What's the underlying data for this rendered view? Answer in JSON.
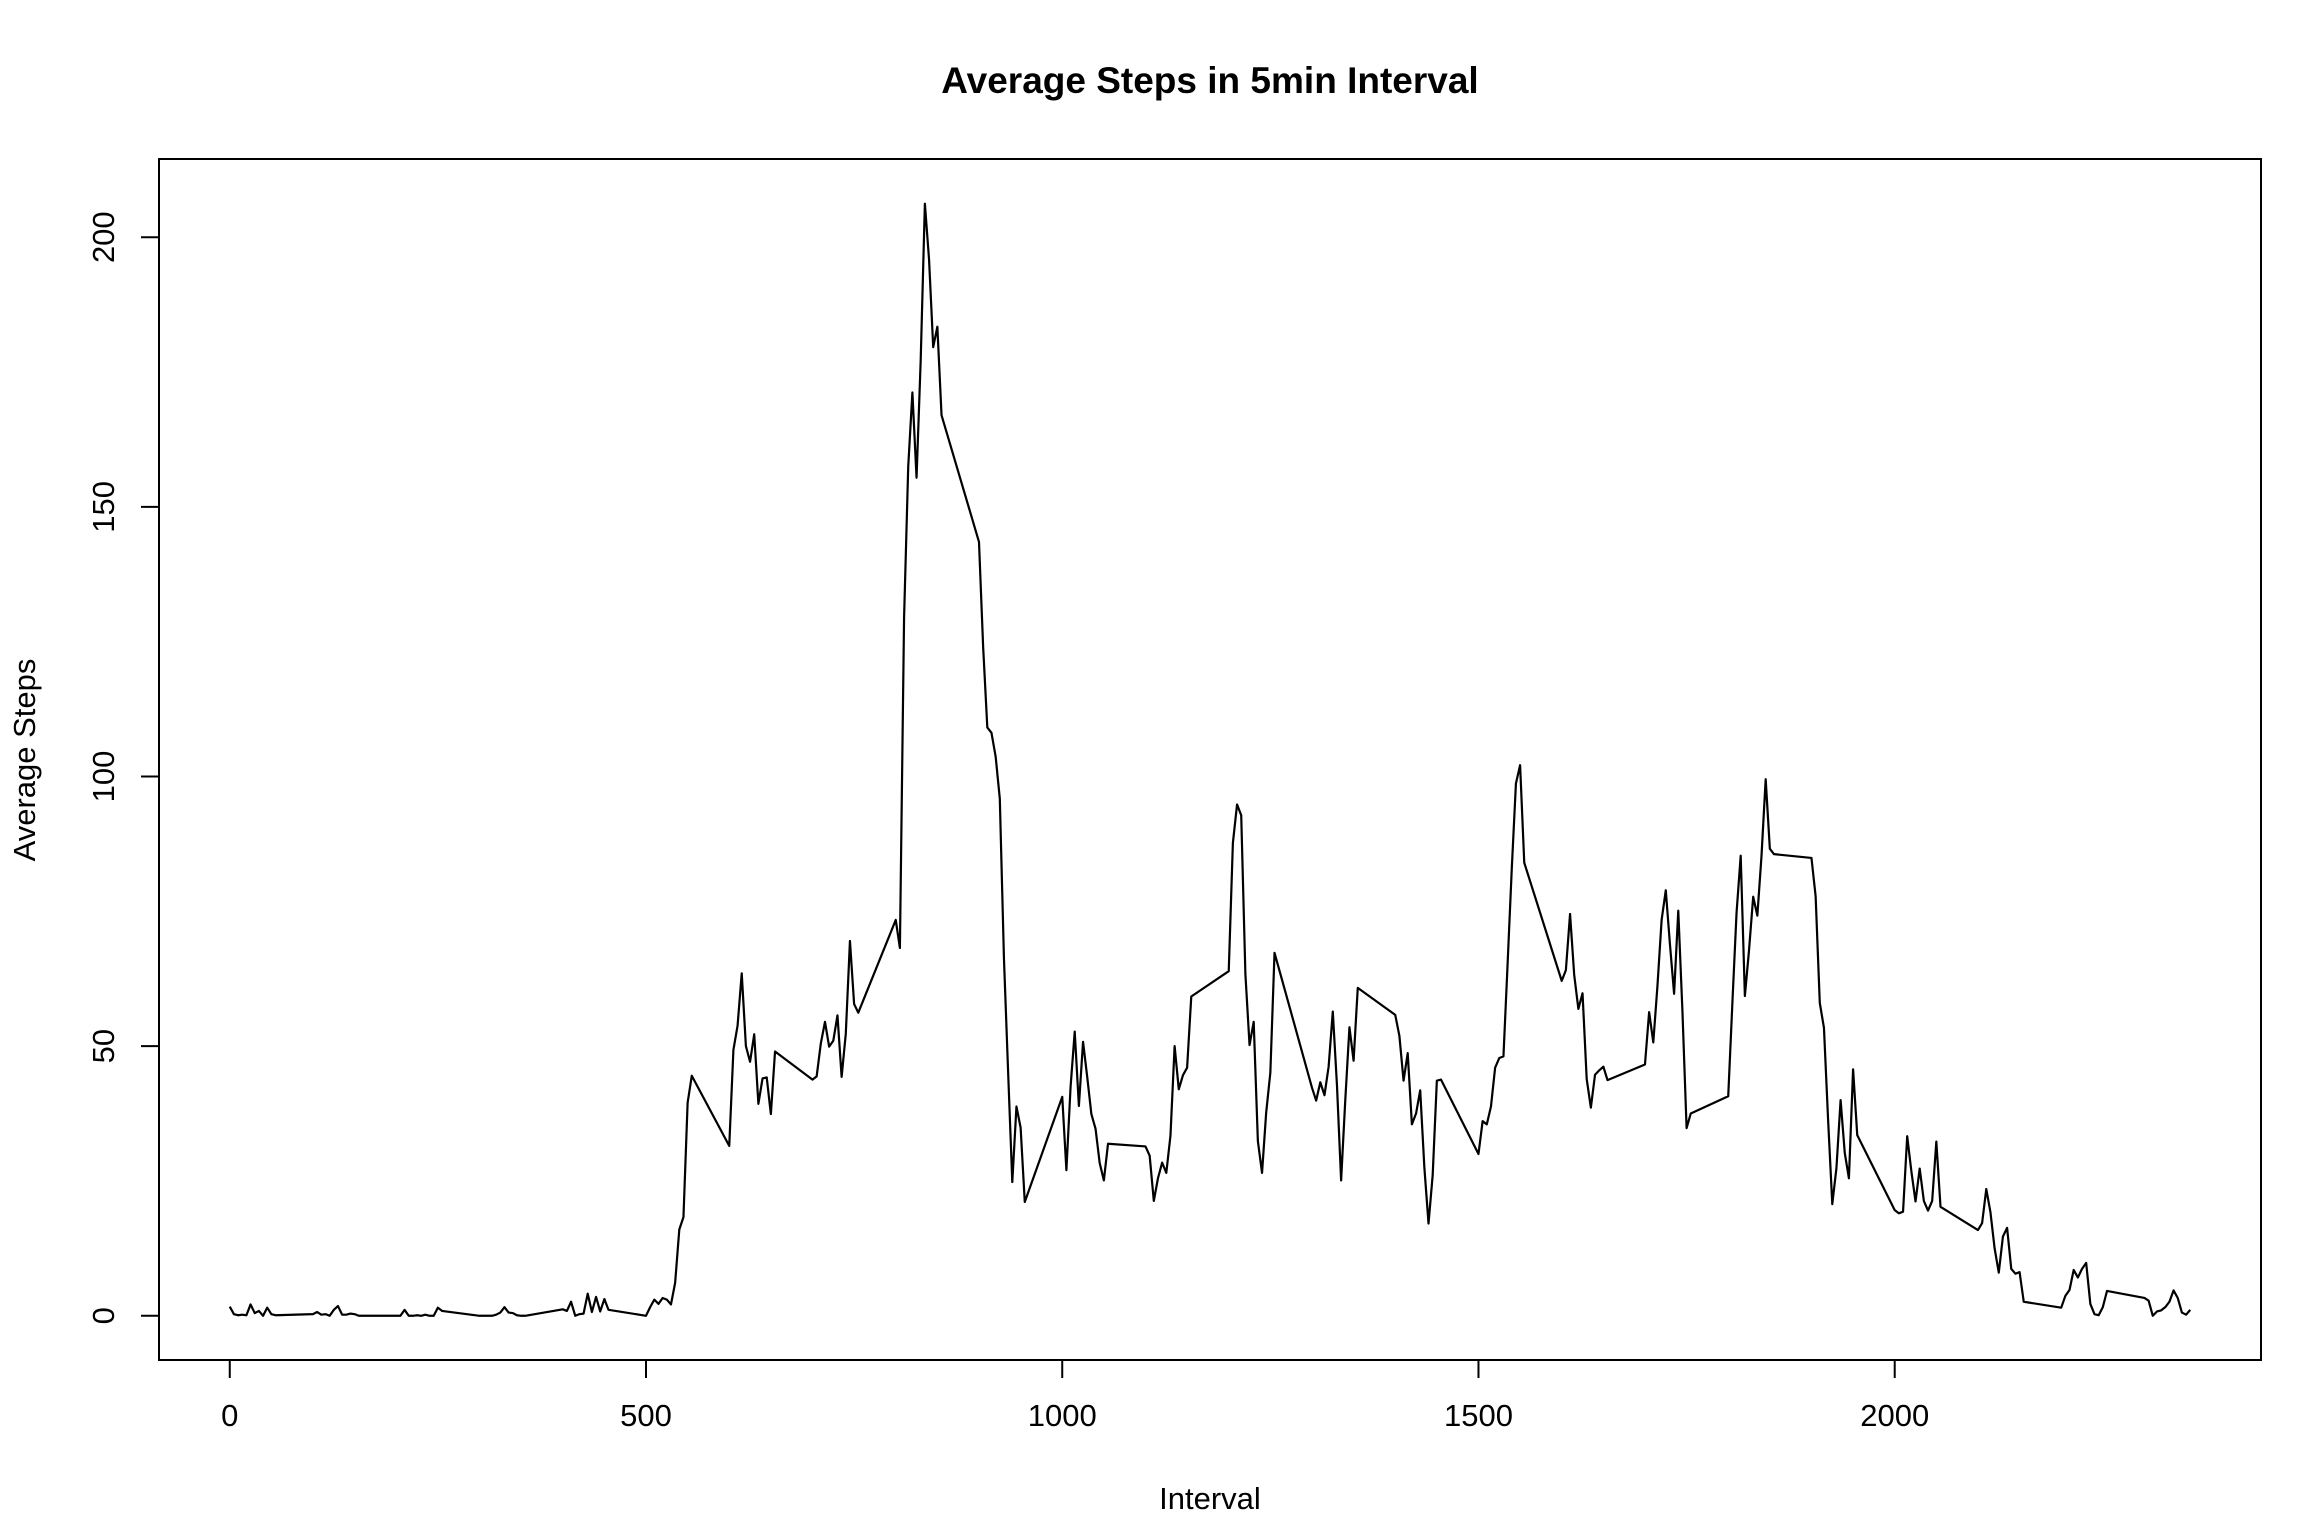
{
  "chart_data": {
    "type": "line",
    "title": "Average Steps in 5min Interval",
    "xlabel": "Interval",
    "ylabel": "Average Steps",
    "xlim": [
      -85,
      2440
    ],
    "ylim": [
      -8.2,
      214.5
    ],
    "x_ticks": [
      0,
      500,
      1000,
      1500,
      2000
    ],
    "y_ticks": [
      0,
      50,
      100,
      150,
      200
    ],
    "grid": false,
    "legend": "none",
    "line_color": "#000000",
    "series": [
      {
        "values": [
          [
            0,
            1.7
          ],
          [
            5,
            0.3
          ],
          [
            10,
            0.1
          ],
          [
            15,
            0.2
          ],
          [
            20,
            0.1
          ],
          [
            25,
            2.1
          ],
          [
            30,
            0.5
          ],
          [
            35,
            0.9
          ],
          [
            40,
            0
          ],
          [
            45,
            1.5
          ],
          [
            50,
            0.3
          ],
          [
            55,
            0.1
          ],
          [
            100,
            0.3
          ],
          [
            105,
            0.7
          ],
          [
            110,
            0.2
          ],
          [
            115,
            0.3
          ],
          [
            120,
            0
          ],
          [
            125,
            1.1
          ],
          [
            130,
            1.8
          ],
          [
            135,
            0.2
          ],
          [
            140,
            0.2
          ],
          [
            145,
            0.4
          ],
          [
            150,
            0.3
          ],
          [
            155,
            0
          ],
          [
            200,
            0
          ],
          [
            205,
            0
          ],
          [
            210,
            1.1
          ],
          [
            215,
            0
          ],
          [
            220,
            0
          ],
          [
            225,
            0.1
          ],
          [
            230,
            0
          ],
          [
            235,
            0.2
          ],
          [
            240,
            0
          ],
          [
            245,
            0
          ],
          [
            250,
            1.5
          ],
          [
            255,
            0.9
          ],
          [
            300,
            0
          ],
          [
            305,
            0
          ],
          [
            310,
            0
          ],
          [
            315,
            0
          ],
          [
            320,
            0.2
          ],
          [
            325,
            0.6
          ],
          [
            330,
            1.6
          ],
          [
            335,
            0.6
          ],
          [
            340,
            0.5
          ],
          [
            345,
            0.1
          ],
          [
            350,
            0
          ],
          [
            355,
            0
          ],
          [
            400,
            1.2
          ],
          [
            405,
            0.9
          ],
          [
            410,
            2.6
          ],
          [
            415,
            0
          ],
          [
            420,
            0.3
          ],
          [
            425,
            0.4
          ],
          [
            430,
            4.1
          ],
          [
            435,
            0.7
          ],
          [
            440,
            3.5
          ],
          [
            445,
            0.8
          ],
          [
            450,
            3.1
          ],
          [
            455,
            1.1
          ],
          [
            500,
            0
          ],
          [
            505,
            1.6
          ],
          [
            510,
            3.0
          ],
          [
            515,
            2.2
          ],
          [
            520,
            3.3
          ],
          [
            525,
            3.0
          ],
          [
            530,
            2.1
          ],
          [
            535,
            6.1
          ],
          [
            540,
            16.0
          ],
          [
            545,
            18.3
          ],
          [
            550,
            39.5
          ],
          [
            555,
            44.5
          ],
          [
            600,
            31.5
          ],
          [
            605,
            49.3
          ],
          [
            610,
            53.8
          ],
          [
            615,
            63.5
          ],
          [
            620,
            50.0
          ],
          [
            625,
            47.1
          ],
          [
            630,
            52.2
          ],
          [
            635,
            39.3
          ],
          [
            640,
            44.0
          ],
          [
            645,
            44.2
          ],
          [
            650,
            37.4
          ],
          [
            655,
            49.0
          ],
          [
            700,
            43.8
          ],
          [
            705,
            44.4
          ],
          [
            710,
            50.5
          ],
          [
            715,
            54.5
          ],
          [
            720,
            49.9
          ],
          [
            725,
            51.0
          ],
          [
            730,
            55.7
          ],
          [
            735,
            44.3
          ],
          [
            740,
            52.3
          ],
          [
            745,
            69.5
          ],
          [
            750,
            57.8
          ],
          [
            755,
            56.2
          ],
          [
            800,
            73.4
          ],
          [
            805,
            68.2
          ],
          [
            810,
            129.4
          ],
          [
            815,
            157.5
          ],
          [
            820,
            171.2
          ],
          [
            825,
            155.4
          ],
          [
            830,
            177.3
          ],
          [
            835,
            206.2
          ],
          [
            840,
            195.9
          ],
          [
            845,
            179.6
          ],
          [
            850,
            183.4
          ],
          [
            855,
            167.0
          ],
          [
            900,
            143.5
          ],
          [
            905,
            124.0
          ],
          [
            910,
            109.1
          ],
          [
            915,
            108.1
          ],
          [
            920,
            103.7
          ],
          [
            925,
            95.9
          ],
          [
            930,
            66.2
          ],
          [
            935,
            45.2
          ],
          [
            940,
            24.8
          ],
          [
            945,
            38.8
          ],
          [
            950,
            34.9
          ],
          [
            955,
            21.1
          ],
          [
            1000,
            40.6
          ],
          [
            1005,
            27.0
          ],
          [
            1010,
            42.4
          ],
          [
            1015,
            52.7
          ],
          [
            1020,
            38.9
          ],
          [
            1025,
            50.8
          ],
          [
            1030,
            44.3
          ],
          [
            1035,
            37.4
          ],
          [
            1040,
            34.7
          ],
          [
            1045,
            28.3
          ],
          [
            1050,
            25.1
          ],
          [
            1055,
            31.9
          ],
          [
            1100,
            31.4
          ],
          [
            1105,
            29.7
          ],
          [
            1110,
            21.3
          ],
          [
            1115,
            25.5
          ],
          [
            1120,
            28.4
          ],
          [
            1125,
            26.5
          ],
          [
            1130,
            33.4
          ],
          [
            1135,
            50.0
          ],
          [
            1140,
            42.0
          ],
          [
            1145,
            44.6
          ],
          [
            1150,
            46.0
          ],
          [
            1155,
            59.2
          ],
          [
            1200,
            63.9
          ],
          [
            1205,
            87.7
          ],
          [
            1210,
            94.8
          ],
          [
            1215,
            92.8
          ],
          [
            1220,
            63.4
          ],
          [
            1225,
            50.2
          ],
          [
            1230,
            54.5
          ],
          [
            1235,
            32.4
          ],
          [
            1240,
            26.5
          ],
          [
            1245,
            37.7
          ],
          [
            1250,
            45.1
          ],
          [
            1255,
            67.3
          ],
          [
            1300,
            42.3
          ],
          [
            1305,
            39.9
          ],
          [
            1310,
            43.3
          ],
          [
            1315,
            40.9
          ],
          [
            1320,
            46.2
          ],
          [
            1325,
            56.4
          ],
          [
            1330,
            42.8
          ],
          [
            1335,
            25.1
          ],
          [
            1340,
            40.0
          ],
          [
            1345,
            53.5
          ],
          [
            1350,
            47.3
          ],
          [
            1355,
            60.8
          ],
          [
            1400,
            55.8
          ],
          [
            1405,
            51.9
          ],
          [
            1410,
            43.6
          ],
          [
            1415,
            48.7
          ],
          [
            1420,
            35.5
          ],
          [
            1425,
            37.5
          ],
          [
            1430,
            41.8
          ],
          [
            1435,
            27.5
          ],
          [
            1440,
            17.1
          ],
          [
            1445,
            26.1
          ],
          [
            1450,
            43.6
          ],
          [
            1455,
            43.8
          ],
          [
            1500,
            30.0
          ],
          [
            1505,
            36.1
          ],
          [
            1510,
            35.5
          ],
          [
            1515,
            38.8
          ],
          [
            1520,
            46.0
          ],
          [
            1525,
            47.8
          ],
          [
            1530,
            48.1
          ],
          [
            1535,
            65.3
          ],
          [
            1540,
            82.9
          ],
          [
            1545,
            98.7
          ],
          [
            1550,
            102.1
          ],
          [
            1555,
            84.0
          ],
          [
            1600,
            62.1
          ],
          [
            1605,
            64.1
          ],
          [
            1610,
            74.5
          ],
          [
            1615,
            63.2
          ],
          [
            1620,
            56.9
          ],
          [
            1625,
            59.8
          ],
          [
            1630,
            43.9
          ],
          [
            1635,
            38.6
          ],
          [
            1640,
            44.7
          ],
          [
            1645,
            45.5
          ],
          [
            1650,
            46.2
          ],
          [
            1655,
            43.7
          ],
          [
            1700,
            46.6
          ],
          [
            1705,
            56.3
          ],
          [
            1710,
            50.7
          ],
          [
            1715,
            61.2
          ],
          [
            1720,
            73.4
          ],
          [
            1725,
            78.9
          ],
          [
            1730,
            68.9
          ],
          [
            1735,
            59.7
          ],
          [
            1740,
            75.1
          ],
          [
            1745,
            56.5
          ],
          [
            1750,
            34.8
          ],
          [
            1755,
            37.5
          ],
          [
            1800,
            40.7
          ],
          [
            1805,
            58.0
          ],
          [
            1810,
            74.7
          ],
          [
            1815,
            85.3
          ],
          [
            1820,
            59.3
          ],
          [
            1825,
            67.8
          ],
          [
            1830,
            77.7
          ],
          [
            1835,
            74.2
          ],
          [
            1840,
            85.3
          ],
          [
            1845,
            99.5
          ],
          [
            1850,
            86.6
          ],
          [
            1855,
            85.6
          ],
          [
            1900,
            84.9
          ],
          [
            1905,
            77.8
          ],
          [
            1910,
            58.0
          ],
          [
            1915,
            53.4
          ],
          [
            1920,
            36.3
          ],
          [
            1925,
            20.7
          ],
          [
            1930,
            27.4
          ],
          [
            1935,
            40.0
          ],
          [
            1940,
            30.2
          ],
          [
            1945,
            25.5
          ],
          [
            1950,
            45.7
          ],
          [
            1955,
            33.5
          ],
          [
            2000,
            19.6
          ],
          [
            2005,
            19.0
          ],
          [
            2010,
            19.3
          ],
          [
            2015,
            33.3
          ],
          [
            2020,
            26.8
          ],
          [
            2025,
            21.2
          ],
          [
            2030,
            27.3
          ],
          [
            2035,
            21.3
          ],
          [
            2040,
            19.5
          ],
          [
            2045,
            21.3
          ],
          [
            2050,
            32.3
          ],
          [
            2055,
            20.2
          ],
          [
            2100,
            15.9
          ],
          [
            2105,
            17.2
          ],
          [
            2110,
            23.5
          ],
          [
            2115,
            19.2
          ],
          [
            2120,
            12.5
          ],
          [
            2125,
            8.0
          ],
          [
            2130,
            14.7
          ],
          [
            2135,
            16.3
          ],
          [
            2140,
            8.7
          ],
          [
            2145,
            7.8
          ],
          [
            2150,
            8.1
          ],
          [
            2155,
            2.6
          ],
          [
            2200,
            1.5
          ],
          [
            2205,
            3.7
          ],
          [
            2210,
            4.8
          ],
          [
            2215,
            8.5
          ],
          [
            2220,
            7.1
          ],
          [
            2225,
            8.7
          ],
          [
            2230,
            9.8
          ],
          [
            2235,
            2.2
          ],
          [
            2240,
            0.3
          ],
          [
            2245,
            0.1
          ],
          [
            2250,
            1.6
          ],
          [
            2255,
            4.6
          ],
          [
            2300,
            3.3
          ],
          [
            2305,
            2.8
          ],
          [
            2310,
            0
          ],
          [
            2315,
            0.8
          ],
          [
            2320,
            1.0
          ],
          [
            2325,
            1.6
          ],
          [
            2330,
            2.6
          ],
          [
            2335,
            4.7
          ],
          [
            2340,
            3.3
          ],
          [
            2345,
            0.6
          ],
          [
            2350,
            0.2
          ],
          [
            2355,
            1.1
          ]
        ]
      }
    ]
  }
}
